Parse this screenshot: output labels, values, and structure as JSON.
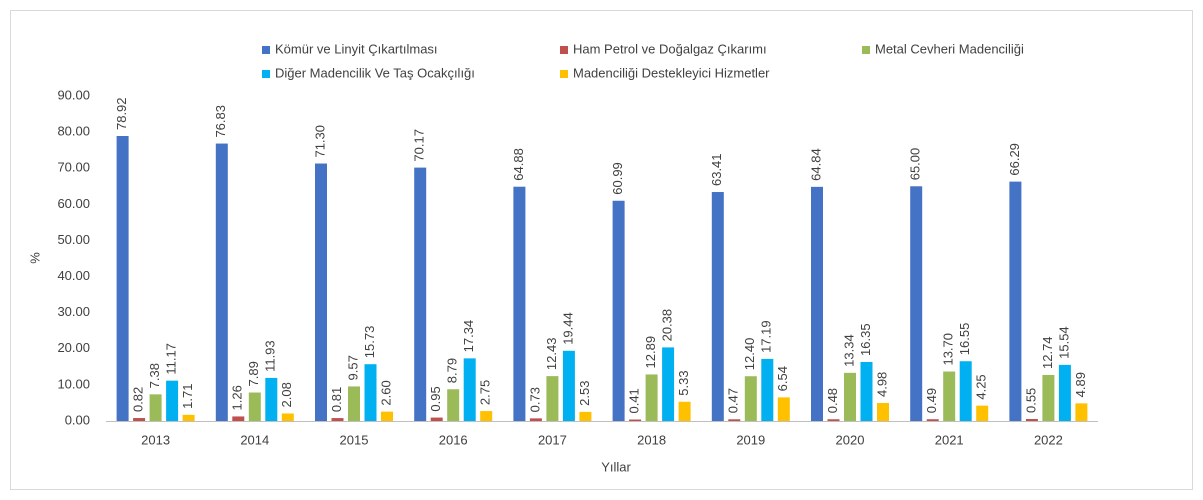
{
  "chart_data": {
    "type": "bar",
    "x_label": "Yıllar",
    "y_label": "%",
    "categories": [
      "2013",
      "2014",
      "2015",
      "2016",
      "2017",
      "2018",
      "2019",
      "2020",
      "2021",
      "2022"
    ],
    "ylim": [
      0,
      90
    ],
    "yticks": [
      {
        "value": 0,
        "label": "0.00"
      },
      {
        "value": 10,
        "label": "10.00"
      },
      {
        "value": 20,
        "label": "20.00"
      },
      {
        "value": 30,
        "label": "30.00"
      },
      {
        "value": 40,
        "label": "40.00"
      },
      {
        "value": 50,
        "label": "50.00"
      },
      {
        "value": 60,
        "label": "60.00"
      },
      {
        "value": 70,
        "label": "70.00"
      },
      {
        "value": 80,
        "label": "80.00"
      },
      {
        "value": 90,
        "label": "90.00"
      }
    ],
    "grid": false,
    "legend": "top",
    "series": [
      {
        "name": "Kömür ve Linyit Çıkartılması",
        "color": "#4472c4",
        "values": [
          78.92,
          76.83,
          71.3,
          70.17,
          64.88,
          60.99,
          63.41,
          64.84,
          65,
          66.29
        ],
        "value_labels": [
          "78.92",
          "76.83",
          "71.30",
          "70.17",
          "64.88",
          "60.99",
          "63.41",
          "64.84",
          "65.00",
          "66.29"
        ]
      },
      {
        "name": "Ham Petrol ve Doğalgaz Çıkarımı",
        "color": "#c0504d",
        "values": [
          0.82,
          1.26,
          0.81,
          0.95,
          0.73,
          0.41,
          0.47,
          0.48,
          0.49,
          0.55
        ],
        "value_labels": [
          "0.82",
          "1.26",
          "0.81",
          "0.95",
          "0.73",
          "0.41",
          "0.47",
          "0.48",
          "0.49",
          "0.55"
        ]
      },
      {
        "name": "Metal Cevheri Madenciliği",
        "color": "#9bbb59",
        "values": [
          7.38,
          7.89,
          9.57,
          8.79,
          12.43,
          12.89,
          12.4,
          13.34,
          13.7,
          12.74
        ],
        "value_labels": [
          "7.38",
          "7.89",
          "9.57",
          "8.79",
          "12.43",
          "12.89",
          "12.40",
          "13.34",
          "13.70",
          "12.74"
        ]
      },
      {
        "name": "Diğer Madencilik Ve Taş Ocakçılığı",
        "color": "#00b0f0",
        "values": [
          11.17,
          11.93,
          15.73,
          17.34,
          19.44,
          20.38,
          17.19,
          16.35,
          16.55,
          15.54
        ],
        "value_labels": [
          "11.17",
          "11.93",
          "15.73",
          "17.34",
          "19.44",
          "20.38",
          "17.19",
          "16.35",
          "16.55",
          "15.54"
        ]
      },
      {
        "name": "Madenciliği Destekleyici Hizmetler",
        "color": "#ffc000",
        "values": [
          1.71,
          2.08,
          2.6,
          2.75,
          2.53,
          5.33,
          6.54,
          4.98,
          4.25,
          4.89
        ],
        "value_labels": [
          "1.71",
          "2.08",
          "2.60",
          "2.75",
          "2.53",
          "5.33",
          "6.54",
          "4.98",
          "4.25",
          "4.89"
        ]
      }
    ]
  }
}
